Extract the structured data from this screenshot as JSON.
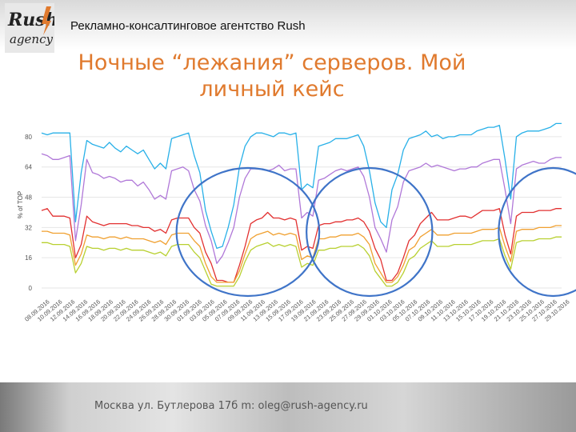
{
  "header": {
    "agency": "Рекламно-консалтинговое агентство Rush",
    "logo_text_1": "Rush",
    "logo_text_2": "agency"
  },
  "slide": {
    "title_line1": "Ночные “лежания” серверов. Мой",
    "title_line2": "личный кейс"
  },
  "footer": {
    "text": "Москва ул. Бутлерова 17б m: oleg@rush-agency.ru"
  },
  "colors": {
    "accent": "#e07a2e",
    "circle": "#3f74c8"
  },
  "chart_data": {
    "type": "line",
    "ylabel": "% of TOP",
    "yticks": [
      0,
      16,
      32,
      48,
      64,
      80
    ],
    "ylim": [
      0,
      88
    ],
    "grid": true,
    "x_labels": [
      "08.09.2016",
      "10.09.2016",
      "12.09.2016",
      "14.09.2016",
      "16.09.2016",
      "18.09.2016",
      "20.09.2016",
      "22.09.2016",
      "24.09.2016",
      "26.09.2016",
      "28.09.2016",
      "30.09.2016",
      "01.09.2016",
      "03.09.2016",
      "05.09.2016",
      "07.09.2016",
      "09.09.2016",
      "11.09.2016",
      "13.09.2016",
      "15.09.2016",
      "17.09.2016",
      "19.09.2016",
      "21.09.2016",
      "23.09.2016",
      "25.09.2016",
      "27.09.2016",
      "29.09.2016",
      "01.10.2016",
      "03.10.2016",
      "05.10.2016",
      "07.10.2016",
      "09.10.2016",
      "11.10.2016",
      "13.10.2016",
      "15.10.2016",
      "17.10.2016",
      "19.10.2016",
      "21.10.2016",
      "23.10.2016",
      "25.10.2016",
      "27.10.2016",
      "29.10.2016"
    ],
    "series": [
      {
        "color": "#28b0e8",
        "values": [
          82,
          81,
          82,
          82,
          82,
          82,
          35,
          61,
          78,
          76,
          75,
          74,
          77,
          74,
          72,
          75,
          73,
          71,
          73,
          68,
          63,
          66,
          63,
          79,
          80,
          81,
          82,
          70,
          61,
          41,
          30,
          21,
          22,
          32,
          44,
          64,
          75,
          80,
          82,
          82,
          81,
          80,
          82,
          82,
          81,
          82,
          52,
          55,
          53,
          75,
          76,
          77,
          79,
          79,
          79,
          80,
          81,
          75,
          62,
          45,
          35,
          32,
          52,
          60,
          73,
          79,
          80,
          81,
          83,
          80,
          81,
          79,
          80,
          80,
          81,
          81,
          81,
          83,
          84,
          85,
          85,
          86,
          68,
          47,
          80,
          82,
          83,
          83,
          83,
          84,
          85,
          87,
          87
        ]
      },
      {
        "color": "#b078d8",
        "values": [
          71,
          70,
          68,
          68,
          69,
          70,
          25,
          44,
          68,
          61,
          60,
          58,
          59,
          58,
          56,
          57,
          57,
          54,
          56,
          52,
          47,
          49,
          47,
          62,
          63,
          64,
          62,
          52,
          46,
          33,
          25,
          13,
          17,
          24,
          32,
          48,
          58,
          63,
          63,
          63,
          62,
          63,
          65,
          62,
          63,
          63,
          37,
          40,
          38,
          57,
          58,
          60,
          62,
          63,
          62,
          63,
          64,
          59,
          48,
          32,
          26,
          19,
          36,
          43,
          56,
          62,
          63,
          64,
          66,
          64,
          65,
          64,
          63,
          62,
          63,
          63,
          64,
          64,
          66,
          67,
          68,
          68,
          52,
          34,
          63,
          65,
          66,
          67,
          66,
          66,
          68,
          69,
          69
        ]
      },
      {
        "color": "#e23030",
        "values": [
          41,
          42,
          38,
          38,
          38,
          37,
          16,
          23,
          38,
          35,
          34,
          33,
          34,
          34,
          34,
          34,
          33,
          33,
          32,
          32,
          30,
          31,
          29,
          36,
          37,
          37,
          37,
          32,
          29,
          19,
          13,
          4,
          4,
          3,
          3,
          12,
          22,
          34,
          36,
          37,
          40,
          37,
          37,
          36,
          37,
          36,
          20,
          22,
          21,
          33,
          34,
          34,
          35,
          35,
          36,
          36,
          37,
          35,
          30,
          21,
          15,
          4,
          4,
          8,
          16,
          25,
          28,
          34,
          37,
          40,
          36,
          36,
          36,
          37,
          38,
          38,
          37,
          39,
          41,
          41,
          41,
          42,
          28,
          18,
          38,
          40,
          40,
          40,
          41,
          41,
          41,
          42,
          42
        ]
      },
      {
        "color": "#f0a030",
        "values": [
          30,
          30,
          29,
          29,
          29,
          28,
          12,
          18,
          28,
          27,
          27,
          26,
          27,
          27,
          26,
          27,
          26,
          26,
          26,
          25,
          24,
          25,
          23,
          28,
          29,
          29,
          29,
          25,
          22,
          13,
          6,
          3,
          3,
          3,
          3,
          9,
          18,
          26,
          28,
          29,
          30,
          28,
          29,
          28,
          29,
          28,
          15,
          17,
          16,
          26,
          26,
          27,
          27,
          28,
          28,
          28,
          29,
          27,
          23,
          13,
          8,
          3,
          3,
          6,
          12,
          20,
          22,
          27,
          29,
          31,
          28,
          28,
          28,
          29,
          29,
          29,
          29,
          30,
          31,
          31,
          31,
          32,
          22,
          14,
          30,
          31,
          31,
          31,
          32,
          32,
          32,
          33,
          33
        ]
      },
      {
        "color": "#b8d030",
        "values": [
          24,
          24,
          23,
          23,
          23,
          22,
          8,
          13,
          22,
          21,
          21,
          20,
          21,
          21,
          20,
          21,
          20,
          20,
          20,
          19,
          18,
          19,
          17,
          22,
          23,
          23,
          23,
          19,
          16,
          9,
          2,
          1,
          1,
          1,
          1,
          6,
          14,
          20,
          22,
          23,
          24,
          22,
          23,
          22,
          23,
          22,
          11,
          13,
          12,
          20,
          20,
          21,
          21,
          22,
          22,
          22,
          23,
          21,
          17,
          9,
          5,
          1,
          1,
          3,
          8,
          15,
          17,
          21,
          23,
          25,
          22,
          22,
          22,
          23,
          23,
          23,
          23,
          24,
          25,
          25,
          25,
          26,
          17,
          10,
          24,
          25,
          25,
          25,
          26,
          26,
          26,
          27,
          27
        ]
      }
    ],
    "highlights": [
      {
        "from_point": 25,
        "to_point": 48,
        "note": ""
      },
      {
        "from_point": 48,
        "to_point": 68,
        "note": ""
      },
      {
        "from_point": 82,
        "to_point": 99,
        "note": ""
      }
    ]
  }
}
